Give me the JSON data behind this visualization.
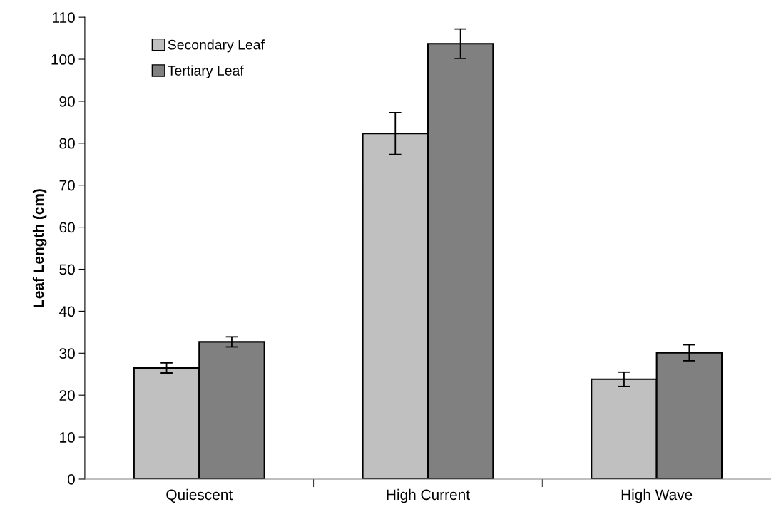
{
  "chart_data": {
    "type": "bar",
    "ylabel": "Leaf Length (cm)",
    "categories": [
      "Quiescent",
      "High Current",
      "High Wave"
    ],
    "series": [
      {
        "name": "Secondary Leaf",
        "color": "#c0c0c0",
        "values": [
          26.5,
          82.3,
          23.8
        ],
        "errors": [
          1.2,
          5.0,
          1.7
        ]
      },
      {
        "name": "Tertiary Leaf",
        "color": "#808080",
        "values": [
          32.7,
          103.7,
          30.1
        ],
        "errors": [
          1.2,
          3.5,
          1.9
        ]
      }
    ],
    "ylim": [
      0,
      110
    ],
    "yticks": [
      0,
      10,
      20,
      30,
      40,
      50,
      60,
      70,
      80,
      90,
      100,
      110
    ],
    "grid": false,
    "legend": "top left"
  }
}
